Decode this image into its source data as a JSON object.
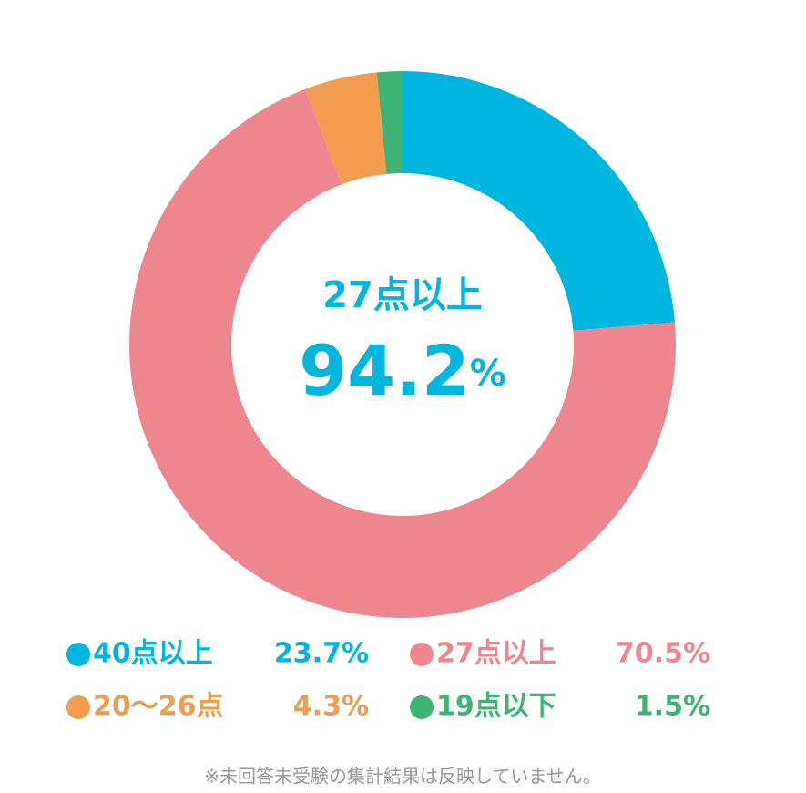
{
  "chart_data": {
    "type": "donut",
    "center_label": "27点以上",
    "center_value": 94.2,
    "center_unit": "%",
    "series": [
      {
        "name": "40点以上",
        "color": "#00b5de",
        "values": [
          23.7
        ],
        "value_labels": [
          "23.7%"
        ]
      },
      {
        "name": "27点以上",
        "color": "#ee868f",
        "values": [
          70.5
        ],
        "value_labels": [
          "70.5%"
        ]
      },
      {
        "name": "20〜26点",
        "color": "#f29c50",
        "values": [
          4.3
        ],
        "value_labels": [
          "4.3%"
        ]
      },
      {
        "name": "19点以下",
        "color": "#3db374",
        "values": [
          1.5
        ],
        "value_labels": [
          "1.5%"
        ]
      }
    ],
    "note": "※未回答未受験の集計結果は反映していません。"
  }
}
